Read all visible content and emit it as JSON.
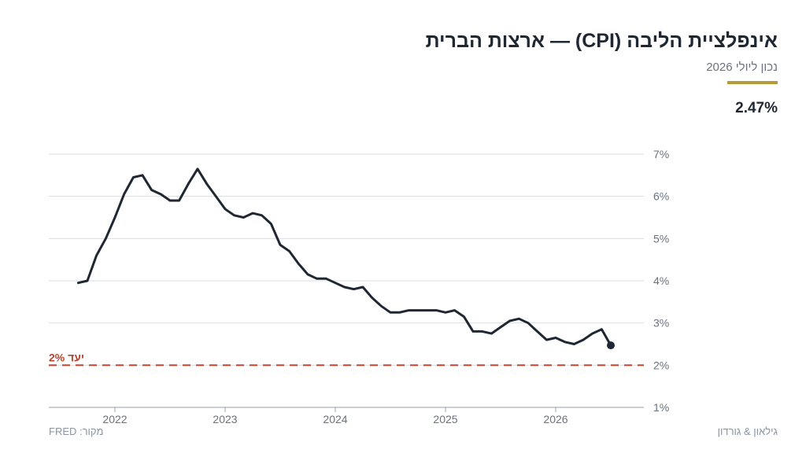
{
  "header": {
    "title": "אינפלציית הליבה (CPI) — ארצות הברית",
    "subtitle": "נכון ליולי 2026",
    "latest_value": "2.47%"
  },
  "footer": {
    "source": "מקור: FRED",
    "brand": "גילאון & גורדון"
  },
  "colors": {
    "line": "#1f2733",
    "target": "#b5452e",
    "accent": "#b59a3a",
    "grid": "#d9dde3",
    "text": "#6b7280"
  },
  "chart_data": {
    "type": "line",
    "title": "אינפלציית הליבה (CPI) — ארצות הברית",
    "ylim": [
      1,
      7
    ],
    "xlim": [
      2021.4,
      2026.8
    ],
    "yticks": [
      1,
      2,
      3,
      4,
      5,
      6,
      7
    ],
    "ytick_labels": [
      "1%",
      "2%",
      "3%",
      "4%",
      "5%",
      "6%",
      "7%"
    ],
    "xticks": [
      2022,
      2023,
      2024,
      2025,
      2026
    ],
    "xtick_labels": [
      "2022",
      "2023",
      "2024",
      "2025",
      "2026"
    ],
    "grid": true,
    "y_axis_side": "right",
    "target": {
      "value": 2,
      "label": "יעד 2%"
    },
    "series": [
      {
        "x": [
          2021.667,
          2021.75,
          2021.833,
          2021.917,
          2022.0,
          2022.083,
          2022.167,
          2022.25,
          2022.333,
          2022.417,
          2022.5,
          2022.583,
          2022.667,
          2022.75,
          2022.833,
          2022.917,
          2023.0,
          2023.083,
          2023.167,
          2023.25,
          2023.333,
          2023.417,
          2023.5,
          2023.583,
          2023.667,
          2023.75,
          2023.833,
          2023.917,
          2024.0,
          2024.083,
          2024.167,
          2024.25,
          2024.333,
          2024.417,
          2024.5,
          2024.583,
          2024.667,
          2024.75,
          2024.833,
          2024.917,
          2025.0,
          2025.083,
          2025.167,
          2025.25,
          2025.333,
          2025.417,
          2025.5,
          2025.583,
          2025.667,
          2025.75,
          2025.833,
          2025.917,
          2026.0,
          2026.083,
          2026.167,
          2026.25,
          2026.333,
          2026.417,
          2026.5
        ],
        "values": [
          3.95,
          4.0,
          4.6,
          5.0,
          5.5,
          6.05,
          6.45,
          6.5,
          6.15,
          6.05,
          5.9,
          5.9,
          6.3,
          6.65,
          6.3,
          6.0,
          5.7,
          5.55,
          5.5,
          5.6,
          5.55,
          5.35,
          4.85,
          4.7,
          4.4,
          4.15,
          4.05,
          4.05,
          3.95,
          3.85,
          3.8,
          3.85,
          3.6,
          3.4,
          3.25,
          3.25,
          3.3,
          3.3,
          3.3,
          3.3,
          3.25,
          3.3,
          3.15,
          2.8,
          2.8,
          2.75,
          2.9,
          3.05,
          3.1,
          3.0,
          2.8,
          2.6,
          2.65,
          2.55,
          2.5,
          2.6,
          2.75,
          2.85,
          2.47
        ]
      }
    ]
  }
}
